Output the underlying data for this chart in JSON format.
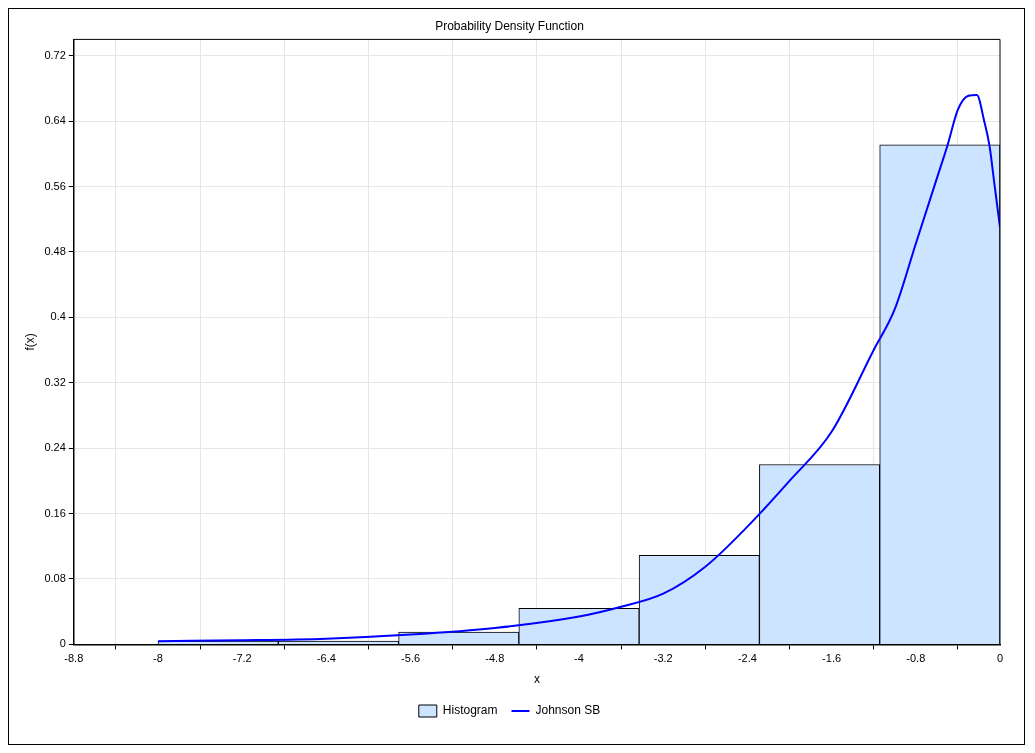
{
  "chart_data": {
    "type": "histogram",
    "title": "Probability Density Function",
    "xlabel": "x",
    "ylabel": "f(x)",
    "bins": [
      -8,
      -6.857,
      -5.714,
      -4.571,
      -3.429,
      -2.286,
      -1.143,
      0
    ],
    "series": [
      {
        "name": "Histogram",
        "color": "#cce4ff",
        "values": [
          0.004,
          0.004,
          0.015,
          0.044,
          0.109,
          0.22,
          0.611
        ]
      },
      {
        "name": "Johnson SB",
        "type": "line",
        "color": "#0000ff",
        "x": [
          -8,
          -7.2,
          -6.4,
          -5.6,
          -4.8,
          -4,
          -3.6,
          -3.2,
          -2.8,
          -2.4,
          -2,
          -1.6,
          -1.2,
          -1,
          -0.8,
          -0.6,
          -0.5,
          -0.4,
          -0.3,
          -0.22,
          -0.15,
          -0.1,
          -0.05,
          0
        ],
        "values": [
          0.004,
          0.005,
          0.007,
          0.012,
          0.02,
          0.034,
          0.046,
          0.062,
          0.095,
          0.144,
          0.2,
          0.26,
          0.36,
          0.41,
          0.49,
          0.57,
          0.61,
          0.654,
          0.671,
          0.672,
          0.64,
          0.61,
          0.56,
          0.51
        ]
      }
    ],
    "xlim": [
      -8.8,
      0
    ],
    "xticks": [
      -8.8,
      -8,
      -7.2,
      -6.4,
      -5.6,
      -4.8,
      -4,
      -3.2,
      -2.4,
      -1.6,
      -0.8,
      0
    ],
    "ylim": [
      0,
      0.74
    ],
    "yticks": [
      0,
      0.08,
      0.16,
      0.24,
      0.32,
      0.4,
      0.48,
      0.56,
      0.64,
      0.72
    ],
    "grid": true,
    "legend": "bottom",
    "marker": "none",
    "line_style": "solid"
  }
}
